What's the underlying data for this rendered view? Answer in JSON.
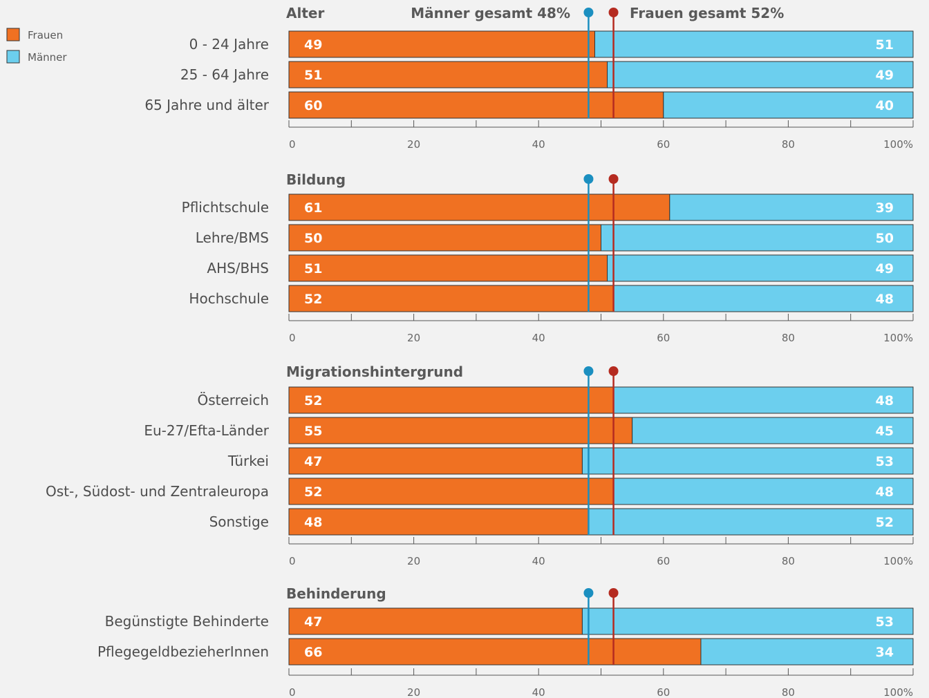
{
  "legend": [
    {
      "label": "Frauen",
      "color": "#f07122"
    },
    {
      "label": "Männer",
      "color": "#6ccfee"
    }
  ],
  "reference": {
    "men_label": "Männer gesamt 48%",
    "women_label": "Frauen gesamt 52%",
    "men_value": 48,
    "women_value": 52,
    "men_color": "#1b8fc0",
    "women_color": "#b52b20"
  },
  "colors": {
    "frauen": "#f07122",
    "maenner": "#6ccfee",
    "axis": "#555555"
  },
  "chart_data": {
    "type": "bar",
    "orientation": "horizontal",
    "stacked": true,
    "series": [
      {
        "name": "Frauen",
        "color": "#f07122"
      },
      {
        "name": "Männer",
        "color": "#6ccfee"
      }
    ],
    "xlim": [
      0,
      100
    ],
    "xticks": [
      "0",
      "20",
      "40",
      "60",
      "80",
      "100%"
    ],
    "grid": false,
    "legend_position": "top-left",
    "groups": [
      {
        "title": "Alter",
        "rows": [
          {
            "label": "0 - 24 Jahre",
            "frauen": 49,
            "maenner": 51
          },
          {
            "label": "25 - 64 Jahre",
            "frauen": 51,
            "maenner": 49
          },
          {
            "label": "65 Jahre und älter",
            "frauen": 60,
            "maenner": 40
          }
        ]
      },
      {
        "title": "Bildung",
        "rows": [
          {
            "label": "Pflichtschule",
            "frauen": 61,
            "maenner": 39
          },
          {
            "label": "Lehre/BMS",
            "frauen": 50,
            "maenner": 50
          },
          {
            "label": "AHS/BHS",
            "frauen": 51,
            "maenner": 49
          },
          {
            "label": "Hochschule",
            "frauen": 52,
            "maenner": 48
          }
        ]
      },
      {
        "title": "Migrationshintergrund",
        "rows": [
          {
            "label": "Österreich",
            "frauen": 52,
            "maenner": 48
          },
          {
            "label": "Eu-27/Efta-Länder",
            "frauen": 55,
            "maenner": 45
          },
          {
            "label": "Türkei",
            "frauen": 47,
            "maenner": 53
          },
          {
            "label": "Ost-, Südost- und Zentraleuropa",
            "frauen": 52,
            "maenner": 48
          },
          {
            "label": "Sonstige",
            "frauen": 48,
            "maenner": 52
          }
        ]
      },
      {
        "title": "Behinderung",
        "rows": [
          {
            "label": "Begünstigte Behinderte",
            "frauen": 47,
            "maenner": 53
          },
          {
            "label": "PflegegeldbezieherInnen",
            "frauen": 66,
            "maenner": 34
          }
        ]
      }
    ]
  }
}
